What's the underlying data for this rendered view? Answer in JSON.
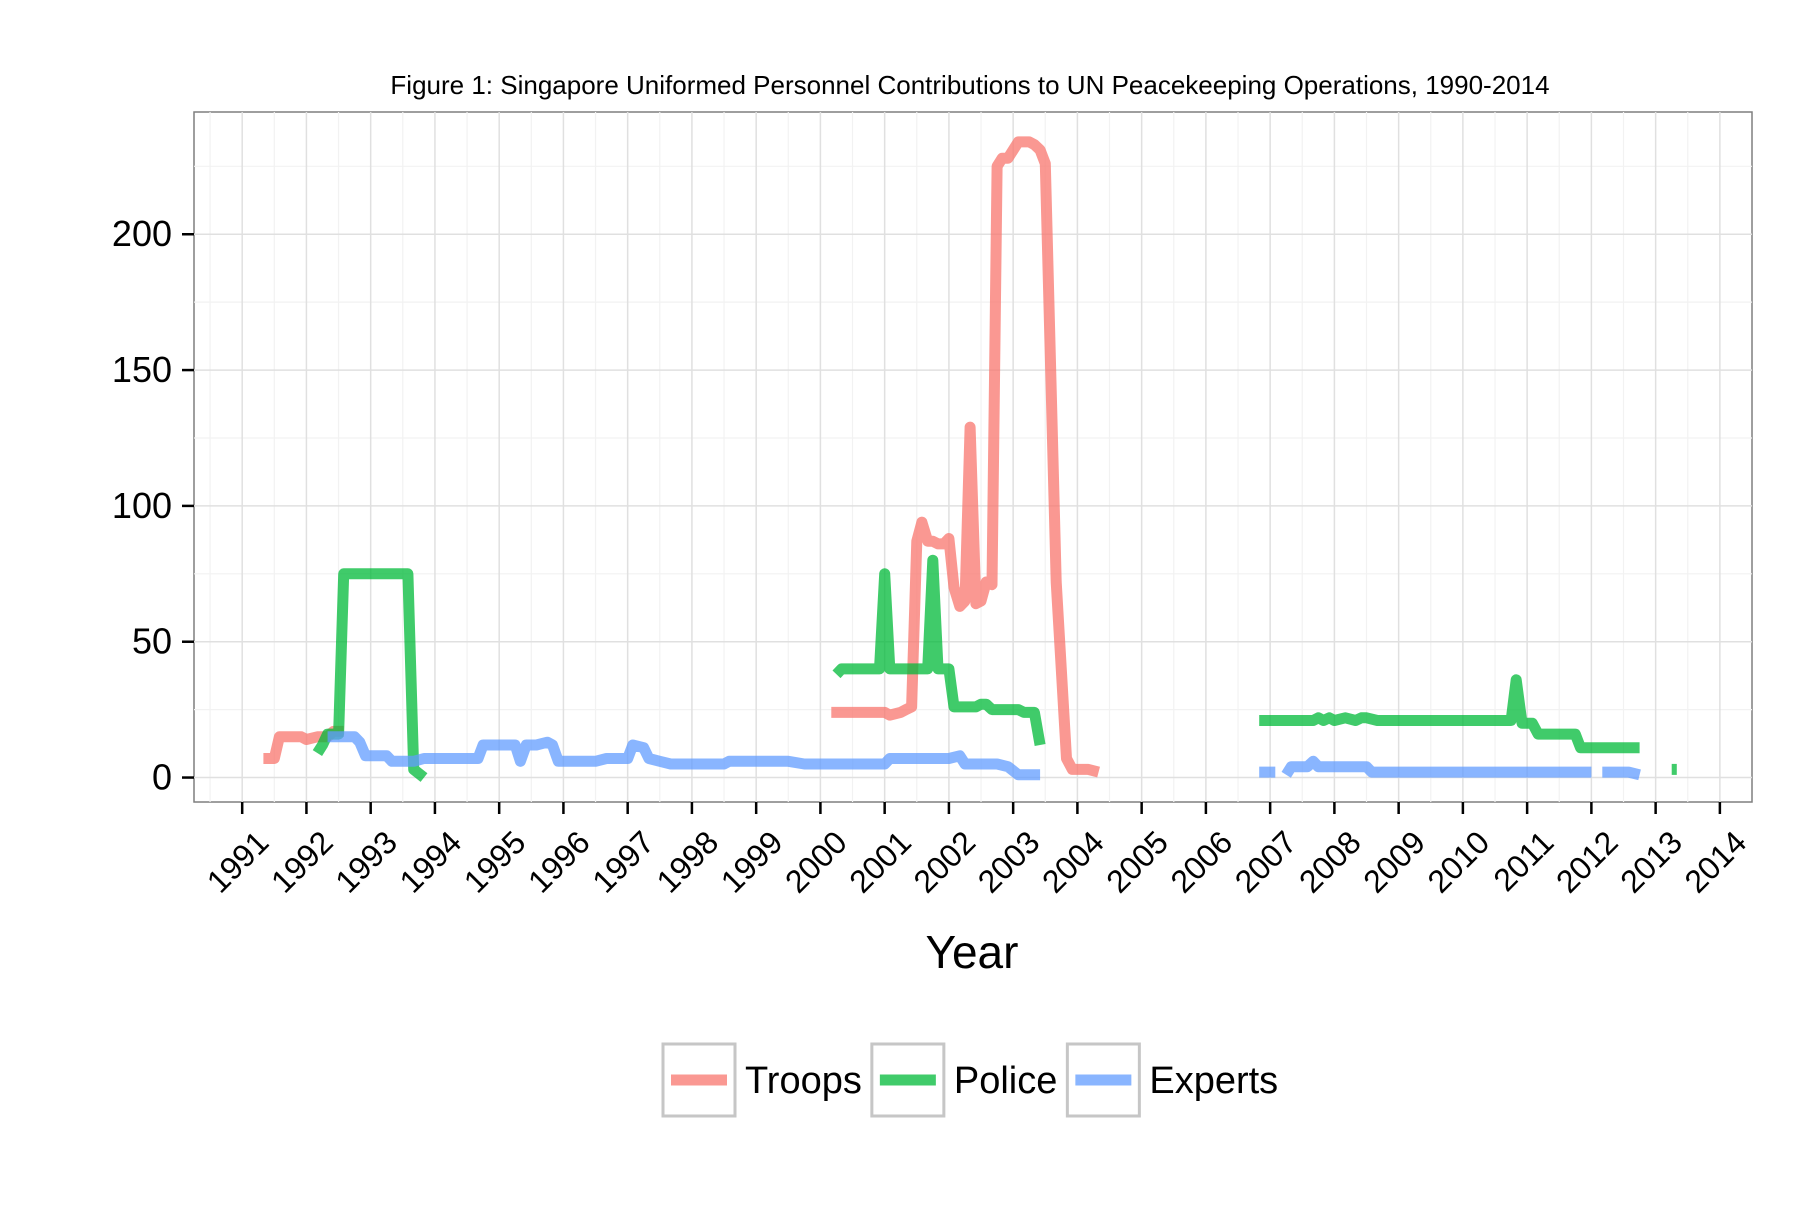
{
  "chart_data": {
    "type": "line",
    "title": "Figure 1: Singapore Uniformed Personnel Contributions to UN Peacekeeping Operations, 1990-2014",
    "xlabel": "Year",
    "ylabel": "",
    "xlim": [
      1990.25,
      2014.5
    ],
    "ylim": [
      -9,
      245
    ],
    "x_ticks": [
      "1991",
      "1992",
      "1993",
      "1994",
      "1995",
      "1996",
      "1997",
      "1998",
      "1999",
      "2000",
      "2001",
      "2002",
      "2003",
      "2004",
      "2005",
      "2006",
      "2007",
      "2008",
      "2009",
      "2010",
      "2011",
      "2012",
      "2013",
      "2014"
    ],
    "y_ticks": [
      0,
      50,
      100,
      150,
      200
    ],
    "grid": true,
    "legend_position": "bottom",
    "colors": {
      "Troops": "#F8766D",
      "Police": "#00BA38",
      "Experts": "#619CFF"
    },
    "series": [
      {
        "name": "Troops",
        "segments": [
          [
            [
              1991.33,
              7
            ],
            [
              1991.5,
              7
            ],
            [
              1991.58,
              15
            ],
            [
              1991.75,
              15
            ],
            [
              1991.92,
              15
            ],
            [
              1992.0,
              14
            ],
            [
              1992.17,
              15
            ],
            [
              1992.33,
              15
            ],
            [
              1992.42,
              17
            ],
            [
              1992.58,
              17
            ]
          ],
          [
            [
              2000.17,
              24
            ],
            [
              2000.5,
              24
            ],
            [
              2000.83,
              24
            ],
            [
              2001.0,
              24
            ],
            [
              2001.08,
              23
            ],
            [
              2001.25,
              24
            ],
            [
              2001.33,
              25
            ],
            [
              2001.42,
              26
            ],
            [
              2001.5,
              87
            ],
            [
              2001.58,
              94
            ],
            [
              2001.67,
              87
            ],
            [
              2001.75,
              87
            ],
            [
              2001.83,
              86
            ],
            [
              2001.92,
              86
            ],
            [
              2002.0,
              88
            ],
            [
              2002.08,
              70
            ],
            [
              2002.17,
              63
            ],
            [
              2002.25,
              65
            ],
            [
              2002.33,
              129
            ],
            [
              2002.42,
              64
            ],
            [
              2002.5,
              65
            ],
            [
              2002.58,
              72
            ],
            [
              2002.67,
              71
            ],
            [
              2002.75,
              225
            ],
            [
              2002.83,
              228
            ],
            [
              2002.92,
              228
            ],
            [
              2003.0,
              231
            ],
            [
              2003.08,
              234
            ],
            [
              2003.17,
              234
            ],
            [
              2003.25,
              234
            ],
            [
              2003.33,
              233
            ],
            [
              2003.42,
              231
            ],
            [
              2003.5,
              226
            ],
            [
              2003.67,
              72
            ],
            [
              2003.83,
              7
            ],
            [
              2003.92,
              3
            ],
            [
              2004.17,
              3
            ],
            [
              2004.33,
              2
            ]
          ]
        ]
      },
      {
        "name": "Police",
        "segments": [
          [
            [
              1992.17,
              9
            ],
            [
              1992.25,
              12
            ],
            [
              1992.33,
              16
            ],
            [
              1992.5,
              16
            ],
            [
              1992.58,
              75
            ],
            [
              1992.75,
              75
            ],
            [
              1993.0,
              75
            ],
            [
              1993.25,
              75
            ],
            [
              1993.5,
              75
            ],
            [
              1993.58,
              75
            ],
            [
              1993.67,
              3
            ],
            [
              1993.83,
              0
            ]
          ],
          [
            [
              2000.25,
              38
            ],
            [
              2000.33,
              40
            ],
            [
              2000.5,
              40
            ],
            [
              2000.75,
              40
            ],
            [
              2000.92,
              40
            ],
            [
              2001.0,
              75
            ],
            [
              2001.08,
              40
            ],
            [
              2001.25,
              40
            ],
            [
              2001.5,
              40
            ],
            [
              2001.67,
              40
            ],
            [
              2001.75,
              80
            ],
            [
              2001.83,
              40
            ],
            [
              2001.92,
              40
            ],
            [
              2002.0,
              40
            ],
            [
              2002.08,
              26
            ],
            [
              2002.25,
              26
            ],
            [
              2002.42,
              26
            ],
            [
              2002.5,
              27
            ],
            [
              2002.58,
              27
            ],
            [
              2002.67,
              25
            ],
            [
              2002.92,
              25
            ],
            [
              2003.08,
              25
            ],
            [
              2003.17,
              24
            ],
            [
              2003.33,
              24
            ],
            [
              2003.42,
              12
            ]
          ],
          [
            [
              2006.83,
              21
            ],
            [
              2007.25,
              21
            ],
            [
              2007.5,
              21
            ],
            [
              2007.67,
              21
            ],
            [
              2007.75,
              22
            ],
            [
              2007.83,
              21
            ],
            [
              2007.92,
              22
            ],
            [
              2008.0,
              21
            ],
            [
              2008.17,
              22
            ],
            [
              2008.33,
              21
            ],
            [
              2008.42,
              22
            ],
            [
              2008.5,
              22
            ],
            [
              2008.67,
              21
            ],
            [
              2009.0,
              21
            ],
            [
              2009.5,
              21
            ],
            [
              2010.0,
              21
            ],
            [
              2010.5,
              21
            ],
            [
              2010.75,
              21
            ],
            [
              2010.83,
              36
            ],
            [
              2010.92,
              20
            ],
            [
              2011.0,
              20
            ],
            [
              2011.08,
              20
            ],
            [
              2011.17,
              16
            ],
            [
              2011.33,
              16
            ],
            [
              2011.58,
              16
            ],
            [
              2011.75,
              16
            ],
            [
              2011.83,
              11
            ],
            [
              2012.0,
              11
            ],
            [
              2012.5,
              11
            ],
            [
              2012.75,
              11
            ]
          ],
          [
            [
              2013.25,
              3
            ],
            [
              2013.33,
              3
            ]
          ]
        ]
      },
      {
        "name": "Experts",
        "segments": [
          [
            [
              1992.33,
              15
            ],
            [
              1992.5,
              15
            ],
            [
              1992.75,
              15
            ],
            [
              1992.83,
              13
            ],
            [
              1992.92,
              8
            ],
            [
              1993.0,
              8
            ],
            [
              1993.25,
              8
            ],
            [
              1993.33,
              6
            ],
            [
              1993.5,
              6
            ],
            [
              1993.67,
              6
            ],
            [
              1993.83,
              7
            ],
            [
              1994.0,
              7
            ],
            [
              1994.5,
              7
            ],
            [
              1994.67,
              7
            ],
            [
              1994.75,
              12
            ],
            [
              1994.92,
              12
            ],
            [
              1995.0,
              12
            ],
            [
              1995.25,
              12
            ],
            [
              1995.33,
              6
            ],
            [
              1995.42,
              12
            ],
            [
              1995.58,
              12
            ],
            [
              1995.75,
              13
            ],
            [
              1995.83,
              12
            ],
            [
              1995.92,
              6
            ],
            [
              1996.0,
              6
            ],
            [
              1996.5,
              6
            ],
            [
              1996.67,
              7
            ],
            [
              1996.83,
              7
            ],
            [
              1997.0,
              7
            ],
            [
              1997.08,
              12
            ],
            [
              1997.25,
              11
            ],
            [
              1997.33,
              7
            ],
            [
              1997.5,
              6
            ],
            [
              1997.67,
              5
            ],
            [
              1998.0,
              5
            ],
            [
              1998.5,
              5
            ],
            [
              1998.58,
              6
            ],
            [
              1999.0,
              6
            ],
            [
              1999.5,
              6
            ],
            [
              1999.75,
              5
            ],
            [
              2000.0,
              5
            ],
            [
              2000.25,
              5
            ],
            [
              2000.5,
              5
            ],
            [
              2000.75,
              5
            ],
            [
              2001.0,
              5
            ],
            [
              2001.08,
              7
            ],
            [
              2001.5,
              7
            ],
            [
              2001.75,
              7
            ],
            [
              2002.0,
              7
            ],
            [
              2002.17,
              8
            ],
            [
              2002.25,
              5
            ],
            [
              2002.5,
              5
            ],
            [
              2002.75,
              5
            ],
            [
              2002.92,
              4
            ],
            [
              2003.08,
              1
            ],
            [
              2003.42,
              1
            ]
          ],
          [
            [
              2006.83,
              2
            ],
            [
              2007.08,
              2
            ]
          ],
          [
            [
              2007.25,
              1
            ],
            [
              2007.33,
              4
            ],
            [
              2007.58,
              4
            ],
            [
              2007.67,
              6
            ],
            [
              2007.75,
              4
            ],
            [
              2008.0,
              4
            ],
            [
              2008.5,
              4
            ],
            [
              2008.58,
              2
            ],
            [
              2009.0,
              2
            ],
            [
              2009.5,
              2
            ],
            [
              2010.0,
              2
            ],
            [
              2010.5,
              2
            ],
            [
              2011.0,
              2
            ],
            [
              2011.5,
              2
            ],
            [
              2011.83,
              2
            ],
            [
              2012.0,
              2
            ]
          ],
          [
            [
              2012.17,
              2
            ],
            [
              2012.58,
              2
            ],
            [
              2012.75,
              1
            ]
          ]
        ]
      }
    ]
  }
}
